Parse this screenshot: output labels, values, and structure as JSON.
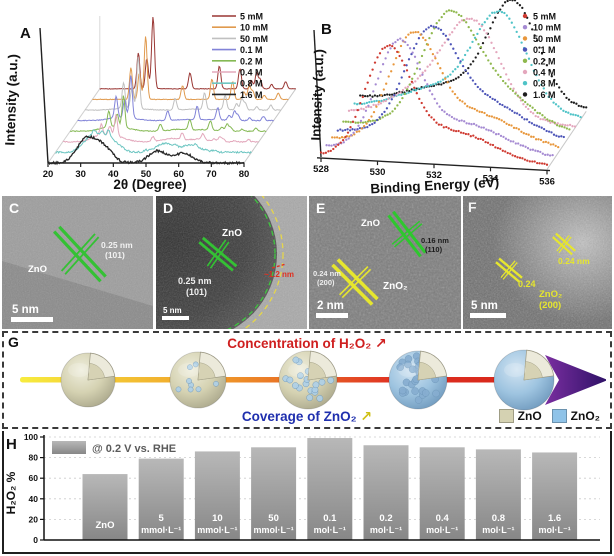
{
  "chart_data": [
    {
      "id": "xrd",
      "panel_letter": "A",
      "type": "line",
      "variant": "3d-waterfall",
      "xlabel": "2θ (Degree)",
      "ylabel": "Intensity (a.u.)",
      "xlim": [
        20,
        80
      ],
      "xticks": [
        20,
        30,
        40,
        50,
        60,
        70,
        80
      ],
      "legend_position": "top-right",
      "grid": false,
      "sharp_peaks": [
        [
          31.8,
          0.5
        ],
        [
          34.4,
          0.42
        ],
        [
          36.3,
          1.0
        ],
        [
          47.6,
          0.22
        ],
        [
          56.6,
          0.32
        ],
        [
          62.9,
          0.28
        ],
        [
          66.4,
          0.12
        ],
        [
          68.0,
          0.22
        ],
        [
          69.1,
          0.13
        ],
        [
          72.6,
          0.06
        ],
        [
          76.9,
          0.1
        ]
      ],
      "broad_peaks": [
        [
          31.5,
          0.42
        ],
        [
          36.8,
          0.3
        ],
        [
          53.5,
          0.22
        ],
        [
          61.5,
          0.18
        ]
      ],
      "series": [
        {
          "name": "5  mM",
          "color": "#9a3734",
          "sharp": 1.0,
          "broad": 0.0
        },
        {
          "name": "10 mM",
          "color": "#e09a4e",
          "sharp": 0.88,
          "broad": 0.0
        },
        {
          "name": "50 mM",
          "color": "#c0c0c0",
          "sharp": 0.72,
          "broad": 0.05
        },
        {
          "name": "0.1 M",
          "color": "#8183d8",
          "sharp": 0.6,
          "broad": 0.08
        },
        {
          "name": "0.2 M",
          "color": "#85b954",
          "sharp": 0.45,
          "broad": 0.12
        },
        {
          "name": "0.4 M",
          "color": "#e3a8bc",
          "sharp": 0.3,
          "broad": 0.2
        },
        {
          "name": "0.8 M",
          "color": "#6ec6c2",
          "sharp": 0.1,
          "broad": 0.55
        },
        {
          "name": "1.6 M",
          "color": "#262626",
          "sharp": 0.0,
          "broad": 0.75
        }
      ]
    },
    {
      "id": "xps",
      "panel_letter": "B",
      "type": "scatter",
      "variant": "3d-waterfall",
      "xlabel": "Binding Energy (eV)",
      "ylabel": "Intensity (a.u.)",
      "xlim": [
        528,
        536
      ],
      "xticks": [
        528,
        530,
        532,
        534,
        536
      ],
      "legend_position": "top-right",
      "grid": false,
      "series": [
        {
          "name": "5  mM",
          "color": "#cf3a31",
          "peak": [
            530.35,
            1.0,
            0.8
          ],
          "shoulder": [
            532.6,
            0.3,
            1.5
          ]
        },
        {
          "name": "10 mM",
          "color": "#a58ad2",
          "peak": [
            530.55,
            0.98,
            0.8
          ],
          "shoulder": [
            532.8,
            0.3,
            1.5
          ]
        },
        {
          "name": "50 mM",
          "color": "#e8973c",
          "peak": [
            530.85,
            0.96,
            0.85
          ],
          "shoulder": [
            533.0,
            0.32,
            1.5
          ]
        },
        {
          "name": "0.1 M",
          "color": "#4d55b8",
          "peak": [
            531.25,
            0.92,
            0.9
          ],
          "shoulder": [
            533.2,
            0.35,
            1.4
          ]
        },
        {
          "name": "0.2 M",
          "color": "#8fb84e",
          "peak": [
            531.65,
            0.94,
            0.95
          ],
          "shoulder": [
            533.3,
            0.4,
            1.3
          ]
        },
        {
          "name": "0.4 M",
          "color": "#e4a7bd",
          "peak": [
            532.4,
            0.9,
            1.0
          ],
          "shoulder": [
            530.6,
            0.25,
            1.2
          ]
        },
        {
          "name": "0.8 M",
          "color": "#4fc3c7",
          "peak": [
            533.15,
            0.96,
            0.95
          ],
          "shoulder": [
            530.8,
            0.2,
            1.2
          ]
        },
        {
          "name": "1.6 M",
          "color": "#1d1d1d",
          "peak": [
            533.4,
            1.0,
            0.9
          ],
          "shoulder": [
            531.0,
            0.15,
            1.2
          ]
        }
      ]
    },
    {
      "id": "h2o2-selectivity",
      "panel_letter": "H",
      "type": "bar",
      "ylabel": "H₂O₂ %",
      "ylim": [
        0,
        100
      ],
      "yticks": [
        0,
        20,
        40,
        60,
        80,
        100
      ],
      "legend": "@ 0.2 V vs. RHE",
      "bar_color_top": "#b8b8b8",
      "bar_color_bottom": "#878787",
      "categories": [
        "ZnO",
        "5 mmol·L⁻¹",
        "10 mmol·L⁻¹",
        "50 mmol·L⁻¹",
        "0.1 mol·L⁻¹",
        "0.2 mol·L⁻¹",
        "0.4 mol·L⁻¹",
        "0.8 mol·L⁻¹",
        "1.6 mol·L⁻¹"
      ],
      "bar_labels": [
        [
          "ZnO"
        ],
        [
          "5",
          "mmol·L⁻¹"
        ],
        [
          "10",
          "mmol·L⁻¹"
        ],
        [
          "50",
          "mmol·L⁻¹"
        ],
        [
          "0.1",
          "mol·L⁻¹"
        ],
        [
          "0.2",
          "mol·L⁻¹"
        ],
        [
          "0.4",
          "mol·L⁻¹"
        ],
        [
          "0.8",
          "mol·L⁻¹"
        ],
        [
          "1.6",
          "mol·L⁻¹"
        ]
      ],
      "values": [
        64,
        79,
        86,
        90,
        99,
        92,
        90,
        88,
        85
      ]
    }
  ],
  "panelC": {
    "letter": "C",
    "material": "ZnO",
    "dspacing": "0.25 nm",
    "plane": "(101)",
    "scalebar": "5 nm"
  },
  "panelD": {
    "letter": "D",
    "material": "ZnO",
    "dspacing": "0.25 nm",
    "plane": "(101)",
    "shell_thickness": "~1.2 nm",
    "scalebar": "5 nm"
  },
  "panelE": {
    "letter": "E",
    "zno_label": "ZnO",
    "zno_d": "0.16 nm",
    "zno_plane": "(110)",
    "zno2_label": "ZnO₂",
    "zno2_d": "0.24 nm",
    "zno2_plane": "(200)",
    "scalebar": "2 nm"
  },
  "panelF": {
    "letter": "F",
    "d1": "0.24",
    "d2": "0.24 nm",
    "material": "ZnO₂",
    "plane": "(200)",
    "scalebar": "5 nm"
  },
  "panelG": {
    "letter": "G",
    "top_label": "Concentration of H₂O₂",
    "top_arrow": "↗",
    "bottom_label": "Coverage of ZnO₂",
    "bottom_arrow": "↗",
    "legend": [
      {
        "label": "ZnO",
        "color": "#d5d2b2"
      },
      {
        "label": "ZnO₂",
        "color": "#8fc3e8"
      }
    ],
    "spheres": [
      {
        "coverage": 0
      },
      {
        "coverage": 0.3
      },
      {
        "coverage": 0.6
      },
      {
        "coverage": 0.85
      },
      {
        "coverage": 1
      }
    ]
  }
}
